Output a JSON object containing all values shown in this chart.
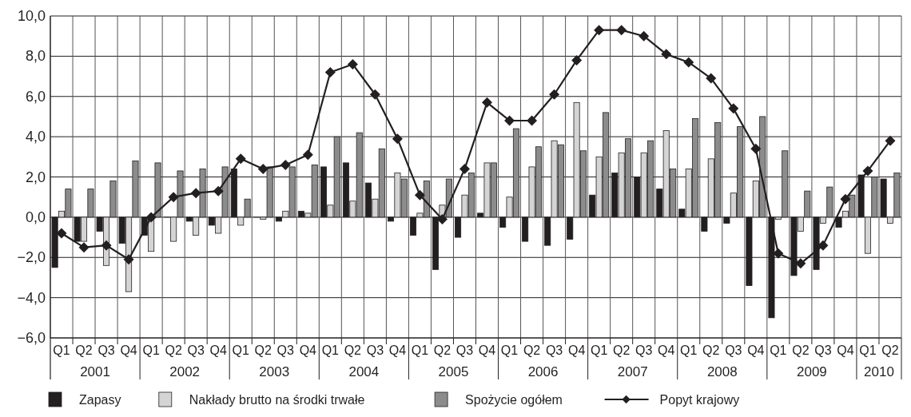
{
  "chart_data": {
    "type": "bar",
    "categories": [
      "Q1",
      "Q2",
      "Q3",
      "Q4",
      "Q1",
      "Q2",
      "Q3",
      "Q4",
      "Q1",
      "Q2",
      "Q3",
      "Q4",
      "Q1",
      "Q2",
      "Q3",
      "Q4",
      "Q1",
      "Q2",
      "Q3",
      "Q4",
      "Q1",
      "Q2",
      "Q3",
      "Q4",
      "Q1",
      "Q2",
      "Q3",
      "Q4",
      "Q1",
      "Q2",
      "Q3",
      "Q4",
      "Q1",
      "Q2",
      "Q3",
      "Q4",
      "Q1",
      "Q2"
    ],
    "annotations": [
      "2001",
      "2002",
      "2003",
      "2004",
      "2005",
      "2006",
      "2007",
      "2008",
      "2009",
      "2010"
    ],
    "series": [
      {
        "name": "Zapasy",
        "color": "#231f20",
        "values": [
          -2.5,
          -1.2,
          -0.7,
          -1.3,
          -0.9,
          0.0,
          -0.2,
          -0.4,
          2.4,
          0.0,
          -0.2,
          0.3,
          2.5,
          2.7,
          1.7,
          -0.2,
          -0.9,
          -2.6,
          -1.0,
          0.2,
          -0.5,
          -1.2,
          -1.4,
          -1.1,
          1.1,
          2.2,
          2.0,
          1.4,
          0.4,
          -0.7,
          -0.3,
          -3.4,
          -5.0,
          -2.9,
          -2.6,
          -0.5,
          2.1,
          1.9
        ]
      },
      {
        "name": "Nakłady brutto na środki trwałe",
        "color": "#d4d4d4",
        "values": [
          0.3,
          -1.2,
          -2.4,
          -3.7,
          -1.7,
          -1.2,
          -0.9,
          -0.8,
          -0.4,
          -0.1,
          0.3,
          0.2,
          0.6,
          0.8,
          0.9,
          2.2,
          0.2,
          0.6,
          1.1,
          2.7,
          1.0,
          2.5,
          3.8,
          5.7,
          3.0,
          3.2,
          3.2,
          4.3,
          2.4,
          2.9,
          1.2,
          1.8,
          -0.1,
          -0.7,
          -0.3,
          0.3,
          -1.8,
          -0.3
        ]
      },
      {
        "name": "Spożycie ogółem",
        "color": "#8c8c8c",
        "values": [
          1.4,
          1.4,
          1.8,
          2.8,
          2.7,
          2.3,
          2.4,
          2.5,
          0.9,
          2.5,
          2.5,
          2.6,
          4.0,
          4.2,
          3.4,
          1.9,
          1.8,
          1.9,
          2.2,
          2.7,
          4.4,
          3.5,
          3.6,
          3.3,
          5.2,
          3.9,
          3.8,
          2.4,
          4.9,
          4.7,
          4.5,
          5.0,
          3.3,
          1.3,
          1.5,
          1.1,
          2.0,
          2.2
        ]
      },
      {
        "name": "Popyt krajowy",
        "type": "line",
        "color": "#231f20",
        "values": [
          -0.8,
          -1.5,
          -1.4,
          -2.1,
          0.0,
          1.0,
          1.2,
          1.3,
          2.9,
          2.4,
          2.6,
          3.1,
          7.2,
          7.6,
          6.1,
          3.9,
          1.1,
          -0.1,
          2.4,
          5.7,
          4.8,
          4.8,
          6.1,
          7.8,
          9.3,
          9.3,
          9.0,
          8.1,
          7.7,
          6.9,
          5.4,
          3.4,
          -1.8,
          -2.3,
          -1.4,
          0.9,
          2.3,
          3.8
        ]
      }
    ],
    "marker": "diamond",
    "ylim": [
      -6,
      10
    ],
    "yticks": [
      {
        "value": -6,
        "label": "−6,0"
      },
      {
        "value": -4,
        "label": "−4,0"
      },
      {
        "value": -2,
        "label": "−2,0"
      },
      {
        "value": 0,
        "label": "0,0"
      },
      {
        "value": 2,
        "label": "2,0"
      },
      {
        "value": 4,
        "label": "4,0"
      },
      {
        "value": 6,
        "label": "6,0"
      },
      {
        "value": 8,
        "label": "8,0"
      },
      {
        "value": 10,
        "label": "10,0"
      }
    ],
    "grid": true,
    "legend": "bottom"
  }
}
